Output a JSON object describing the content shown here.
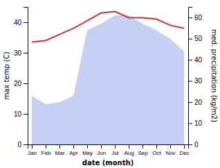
{
  "chart_data": {
    "type": "line",
    "categories": [
      "Jan",
      "Feb",
      "Mar",
      "Apr",
      "May",
      "Jun",
      "Jul",
      "Aug",
      "Sep",
      "Oct",
      "Nov",
      "Dec"
    ],
    "xlabel": "date (month)",
    "ylabel": "max temp (C)",
    "y2label": "med. precipitation (kg/m2)",
    "series": [
      {
        "type": "area",
        "axis": "y2",
        "color": "#c5d0f5",
        "values": [
          23,
          19,
          20,
          23,
          54,
          57,
          61,
          61,
          57,
          54,
          50,
          44
        ]
      },
      {
        "type": "line",
        "color": "#cc3333",
        "values": [
          33.5,
          34.0,
          36.0,
          38.0,
          40.5,
          43.0,
          43.5,
          41.5,
          41.5,
          41.0,
          39.0,
          38.0
        ]
      }
    ],
    "ylim": [
      0,
      45
    ],
    "yticks": [
      0,
      10,
      20,
      30,
      40
    ],
    "y2lim": [
      0,
      65
    ],
    "y2ticks": [
      0,
      10,
      20,
      30,
      40,
      50,
      60
    ],
    "grid": false
  }
}
